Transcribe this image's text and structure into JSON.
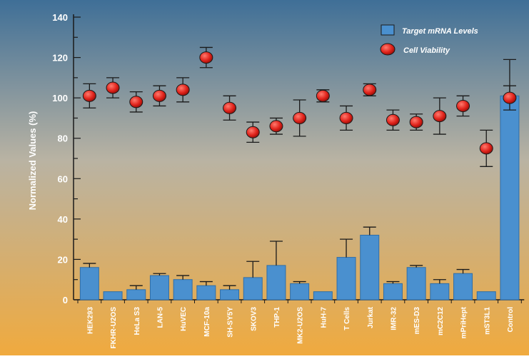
{
  "chart_data": {
    "type": "bar",
    "title": "",
    "xlabel": "",
    "ylabel": "Normalized Values (%)",
    "ylim": [
      0,
      140
    ],
    "yticks": [
      0,
      20,
      40,
      60,
      80,
      100,
      120,
      140
    ],
    "grid": false,
    "legend_position": "top-right",
    "colors": {
      "background_top": "#3f6f97",
      "background_mid": "#b9b3a3",
      "background_bottom": "#f0aa3e",
      "bar": "#4a90cf",
      "bar_edge": "#2f6ea8",
      "point": "#e0231b",
      "error_bar": "#1a1a1a"
    },
    "categories": [
      "HEK293",
      "FKHR-U2OS",
      "HeLa S3",
      "LAN-5",
      "HuVEC",
      "MCF-10a",
      "SH-SY5Y",
      "SKOV3",
      "THP-1",
      "MK2-U2OS",
      "HuH-7",
      "T Cells",
      "Jurkat",
      "IMR-32",
      "mES-D3",
      "mC2C12",
      "mPriHept",
      "mST3L1",
      "Control"
    ],
    "series": [
      {
        "name": "Target mRNA Levels",
        "kind": "bar",
        "values": [
          16,
          4,
          5,
          12,
          10,
          7,
          5,
          11,
          17,
          8,
          4,
          21,
          32,
          8,
          16,
          8,
          13,
          4,
          101
        ],
        "error": [
          2,
          0,
          2,
          1,
          2,
          2,
          2,
          8,
          12,
          1,
          0,
          9,
          4,
          1,
          1,
          2,
          2,
          0,
          18
        ]
      },
      {
        "name": "Cell Viability",
        "kind": "scatter",
        "values": [
          101,
          105,
          98,
          101,
          104,
          120,
          95,
          83,
          86,
          90,
          101,
          90,
          104,
          89,
          88,
          91,
          96,
          75,
          100
        ],
        "error": [
          6,
          5,
          5,
          5,
          6,
          5,
          6,
          5,
          4,
          9,
          3,
          6,
          3,
          5,
          4,
          9,
          5,
          9,
          6
        ]
      }
    ]
  }
}
